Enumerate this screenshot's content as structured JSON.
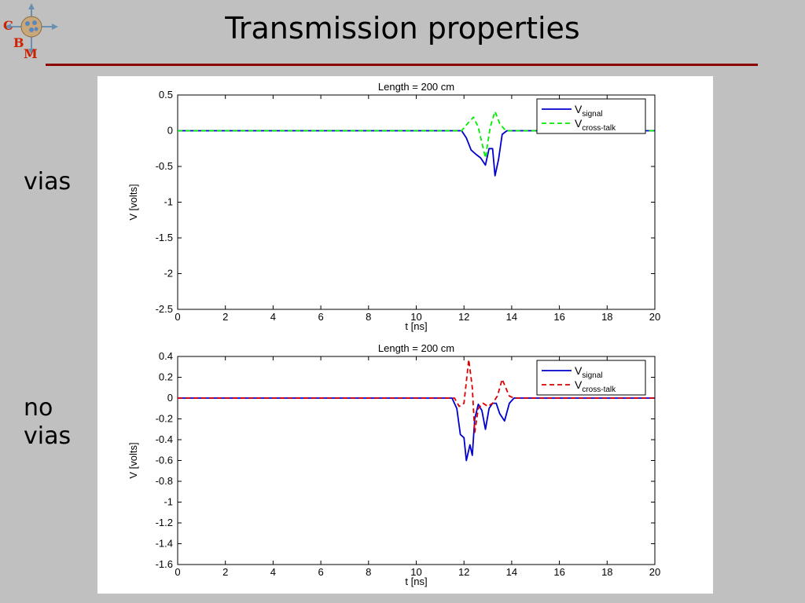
{
  "slide": {
    "title": "Transmission properties",
    "logo_letters": [
      "C",
      "B",
      "M"
    ],
    "label_vias": "vias",
    "label_no_vias": "no vias"
  },
  "colors": {
    "background": "#c0c0c0",
    "title_rule": "#8b0000",
    "signal": "#0000cc",
    "crosstalk_top": "#00ee00",
    "crosstalk_bottom": "#dd0000"
  },
  "chart_data": [
    {
      "type": "line",
      "title": "Length = 200 cm",
      "xlabel": "t [ns]",
      "ylabel": "V [volts]",
      "xlim": [
        0,
        20
      ],
      "ylim": [
        -2.5,
        0.5
      ],
      "xticks": [
        0,
        2,
        4,
        6,
        8,
        10,
        12,
        14,
        16,
        18,
        20
      ],
      "xtick_labels": [
        "0",
        "2",
        "4",
        "6",
        "8",
        "10",
        "12",
        "14",
        "16",
        "18",
        "20"
      ],
      "yticks": [
        0.5,
        0,
        -0.5,
        -1,
        -1.5,
        -2,
        -2.5
      ],
      "ytick_labels": [
        "0.5",
        "0",
        "-0.5",
        "-1",
        "-1.5",
        "-2",
        "-2.5"
      ],
      "grid": false,
      "legend_position": "top-right",
      "series": [
        {
          "name": "V",
          "subscript": "signal",
          "color": "#0000cc",
          "dash": "solid",
          "x": [
            0,
            11.9,
            12.1,
            12.3,
            12.5,
            12.7,
            12.9,
            13.05,
            13.2,
            13.3,
            13.45,
            13.6,
            13.8,
            14.0,
            20
          ],
          "y": [
            0,
            0,
            -0.1,
            -0.27,
            -0.33,
            -0.38,
            -0.48,
            -0.25,
            -0.25,
            -0.63,
            -0.4,
            -0.05,
            0,
            0,
            0
          ]
        },
        {
          "name": "V",
          "subscript": "cross-talk",
          "color": "#00ee00",
          "dash": "dashed",
          "x": [
            0,
            11.9,
            12.15,
            12.4,
            12.6,
            12.9,
            13.1,
            13.3,
            13.5,
            13.75,
            14.0,
            20
          ],
          "y": [
            0,
            0,
            0.1,
            0.19,
            0.05,
            -0.38,
            0.05,
            0.27,
            0.1,
            0,
            0,
            0
          ]
        }
      ]
    },
    {
      "type": "line",
      "title": "Length = 200 cm",
      "xlabel": "t [ns]",
      "ylabel": "V [volts]",
      "xlim": [
        0,
        20
      ],
      "ylim": [
        -1.6,
        0.4
      ],
      "xticks": [
        0,
        2,
        4,
        6,
        8,
        10,
        12,
        14,
        16,
        18,
        20
      ],
      "xtick_labels": [
        "0",
        "2",
        "4",
        "6",
        "8",
        "10",
        "12",
        "14",
        "16",
        "18",
        "20"
      ],
      "yticks": [
        0.4,
        0.2,
        0,
        -0.2,
        -0.4,
        -0.6,
        -0.8,
        -1,
        -1.2,
        -1.4,
        -1.6
      ],
      "ytick_labels": [
        "0.4",
        "0.2",
        "0",
        "-0.2",
        "-0.4",
        "-0.6",
        "-0.8",
        "-1",
        "-1.2",
        "-1.4",
        "-1.6"
      ],
      "grid": false,
      "legend_position": "top-right",
      "series": [
        {
          "name": "V",
          "subscript": "signal",
          "color": "#0000cc",
          "dash": "solid",
          "x": [
            0,
            11.5,
            11.7,
            11.85,
            12.0,
            12.1,
            12.25,
            12.35,
            12.45,
            12.6,
            12.75,
            12.9,
            13.05,
            13.2,
            13.35,
            13.5,
            13.7,
            13.9,
            14.1,
            20
          ],
          "y": [
            0,
            0,
            -0.1,
            -0.35,
            -0.38,
            -0.6,
            -0.45,
            -0.55,
            -0.2,
            -0.06,
            -0.12,
            -0.3,
            -0.1,
            -0.05,
            -0.05,
            -0.15,
            -0.22,
            -0.05,
            0,
            0
          ]
        },
        {
          "name": "V",
          "subscript": "cross-talk",
          "color": "#dd0000",
          "dash": "dashed",
          "x": [
            0,
            11.6,
            11.8,
            12.0,
            12.2,
            12.35,
            12.45,
            12.6,
            12.8,
            13.0,
            13.2,
            13.4,
            13.6,
            13.75,
            13.9,
            14.1,
            20
          ],
          "y": [
            0,
            0,
            -0.08,
            -0.05,
            0.37,
            0.1,
            -0.33,
            -0.1,
            -0.05,
            -0.08,
            -0.05,
            0.02,
            0.18,
            0.1,
            0.02,
            0,
            0
          ]
        }
      ]
    }
  ]
}
